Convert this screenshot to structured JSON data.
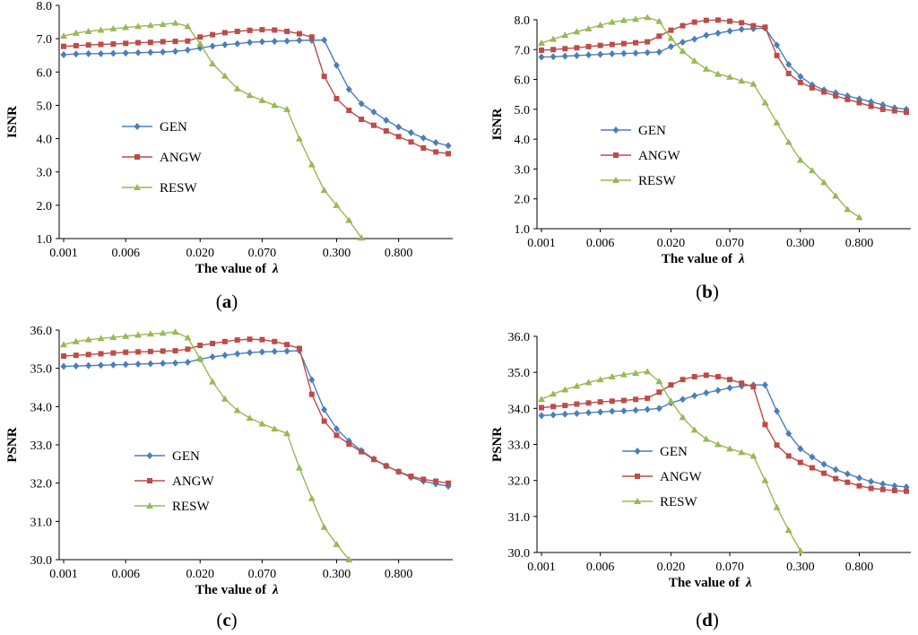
{
  "colors": {
    "GEN": "#4a7ebb",
    "ANGW": "#be4b48",
    "RESW": "#98b954",
    "axis": "#000000"
  },
  "chart_data": [
    {
      "type": "line",
      "panel": "(a)",
      "panel_parts": [
        "(",
        "a",
        ")"
      ],
      "ylabel": "ISNR",
      "xlabel": "The value of",
      "xlabel_symbol": "λ",
      "ylim": [
        1.0,
        8.0
      ],
      "y_ticks": [
        "8.0",
        "7.0",
        "6.0",
        "5.0",
        "4.0",
        "3.0",
        "2.0",
        "1.0"
      ],
      "x_tick_labels": [
        "0.001",
        "0.006",
        "0.020",
        "0.070",
        "0.300",
        "0.800"
      ],
      "x_tick_index": [
        0,
        5,
        11,
        16,
        22,
        27
      ],
      "n_points": 32,
      "series": [
        {
          "name": "GEN",
          "values": [
            6.52,
            6.54,
            6.55,
            6.55,
            6.56,
            6.57,
            6.58,
            6.59,
            6.6,
            6.62,
            6.66,
            6.72,
            6.78,
            6.82,
            6.85,
            6.89,
            6.91,
            6.92,
            6.93,
            6.95,
            6.95,
            6.96,
            6.2,
            5.48,
            5.05,
            4.8,
            4.55,
            4.35,
            4.18,
            4.02,
            3.88,
            3.79
          ]
        },
        {
          "name": "ANGW",
          "values": [
            6.77,
            6.79,
            6.81,
            6.83,
            6.84,
            6.86,
            6.88,
            6.89,
            6.91,
            6.92,
            6.93,
            7.05,
            7.12,
            7.18,
            7.22,
            7.25,
            7.27,
            7.26,
            7.22,
            7.15,
            7.05,
            5.87,
            5.2,
            4.85,
            4.58,
            4.4,
            4.23,
            4.06,
            3.9,
            3.72,
            3.6,
            3.55
          ]
        },
        {
          "name": "RESW",
          "values": [
            7.08,
            7.17,
            7.22,
            7.26,
            7.3,
            7.34,
            7.37,
            7.4,
            7.43,
            7.47,
            7.37,
            6.85,
            6.25,
            5.88,
            5.5,
            5.3,
            5.15,
            5.0,
            4.88,
            4.0,
            3.22,
            2.45,
            2.0,
            1.55,
            1.02
          ]
        }
      ]
    },
    {
      "type": "line",
      "panel": "(b)",
      "panel_parts": [
        "(",
        "b",
        ")"
      ],
      "ylabel": "ISNR",
      "xlabel": "The value of",
      "xlabel_symbol": "λ",
      "ylim": [
        1.0,
        8.0
      ],
      "y_ticks": [
        "8.0",
        "7.0",
        "6.0",
        "5.0",
        "4.0",
        "3.0",
        "2.0",
        "1.0"
      ],
      "x_tick_labels": [
        "0.001",
        "0.006",
        "0.020",
        "0.070",
        "0.300",
        "0.800"
      ],
      "x_tick_index": [
        0,
        5,
        11,
        16,
        22,
        27
      ],
      "n_points": 32,
      "series": [
        {
          "name": "GEN",
          "values": [
            6.75,
            6.76,
            6.78,
            6.8,
            6.82,
            6.84,
            6.86,
            6.87,
            6.88,
            6.9,
            6.92,
            7.1,
            7.25,
            7.35,
            7.48,
            7.55,
            7.62,
            7.68,
            7.7,
            7.72,
            7.15,
            6.5,
            6.1,
            5.82,
            5.65,
            5.55,
            5.45,
            5.35,
            5.25,
            5.15,
            5.05,
            5.0
          ]
        },
        {
          "name": "ANGW",
          "values": [
            6.98,
            7.0,
            7.03,
            7.06,
            7.1,
            7.14,
            7.17,
            7.2,
            7.23,
            7.26,
            7.45,
            7.65,
            7.8,
            7.92,
            7.98,
            7.99,
            7.95,
            7.9,
            7.8,
            7.75,
            6.8,
            6.2,
            5.9,
            5.72,
            5.58,
            5.45,
            5.33,
            5.22,
            5.1,
            5.0,
            4.95,
            4.9
          ]
        },
        {
          "name": "RESW",
          "values": [
            7.22,
            7.35,
            7.48,
            7.6,
            7.7,
            7.82,
            7.92,
            7.98,
            8.02,
            8.08,
            7.95,
            7.38,
            6.95,
            6.62,
            6.35,
            6.18,
            6.08,
            5.95,
            5.85,
            5.22,
            4.55,
            3.9,
            3.3,
            2.95,
            2.55,
            2.1,
            1.65,
            1.38
          ]
        }
      ]
    },
    {
      "type": "line",
      "panel": "(c)",
      "panel_parts": [
        "(",
        "c",
        ")"
      ],
      "ylabel": "PSNR",
      "xlabel": "The value of",
      "xlabel_symbol": "λ",
      "ylim": [
        30.0,
        36.0
      ],
      "y_ticks": [
        "36.0",
        "35.0",
        "34.0",
        "33.0",
        "32.0",
        "31.0",
        "30.0"
      ],
      "x_tick_labels": [
        "0.001",
        "0.006",
        "0.020",
        "0.070",
        "0.300",
        "0.800"
      ],
      "x_tick_index": [
        0,
        5,
        11,
        16,
        22,
        27
      ],
      "n_points": 32,
      "series": [
        {
          "name": "GEN",
          "values": [
            35.05,
            35.06,
            35.07,
            35.08,
            35.09,
            35.1,
            35.11,
            35.12,
            35.13,
            35.14,
            35.16,
            35.24,
            35.3,
            35.34,
            35.38,
            35.41,
            35.43,
            35.44,
            35.45,
            35.46,
            34.7,
            33.92,
            33.42,
            33.1,
            32.85,
            32.63,
            32.45,
            32.3,
            32.15,
            32.05,
            31.98,
            31.92
          ]
        },
        {
          "name": "ANGW",
          "values": [
            35.32,
            35.34,
            35.36,
            35.38,
            35.4,
            35.42,
            35.43,
            35.44,
            35.45,
            35.46,
            35.5,
            35.6,
            35.65,
            35.7,
            35.74,
            35.76,
            35.75,
            35.7,
            35.62,
            35.52,
            34.32,
            33.62,
            33.25,
            33.02,
            32.82,
            32.62,
            32.45,
            32.3,
            32.18,
            32.1,
            32.05,
            32.0
          ]
        },
        {
          "name": "RESW",
          "values": [
            35.62,
            35.7,
            35.75,
            35.78,
            35.81,
            35.84,
            35.87,
            35.9,
            35.92,
            35.95,
            35.8,
            35.25,
            34.65,
            34.2,
            33.9,
            33.7,
            33.55,
            33.42,
            33.3,
            32.4,
            31.6,
            30.85,
            30.4,
            30.0
          ]
        }
      ]
    },
    {
      "type": "line",
      "panel": "(d)",
      "panel_parts": [
        "(",
        "d",
        ")"
      ],
      "ylabel": "PSNR",
      "xlabel": "The value of",
      "xlabel_symbol": "λ",
      "ylim": [
        30.0,
        36.0
      ],
      "y_ticks": [
        "36.0",
        "35.0",
        "34.0",
        "33.0",
        "32.0",
        "31.0",
        "30.0"
      ],
      "x_tick_labels": [
        "0.001",
        "0.006",
        "0.020",
        "0.070",
        "0.300",
        "0.800"
      ],
      "x_tick_index": [
        0,
        5,
        11,
        16,
        22,
        27
      ],
      "n_points": 32,
      "series": [
        {
          "name": "GEN",
          "values": [
            33.8,
            33.82,
            33.84,
            33.86,
            33.88,
            33.9,
            33.92,
            33.93,
            33.95,
            33.97,
            34.0,
            34.15,
            34.25,
            34.35,
            34.43,
            34.5,
            34.57,
            34.62,
            34.65,
            34.65,
            33.92,
            33.3,
            32.88,
            32.65,
            32.45,
            32.3,
            32.18,
            32.07,
            31.97,
            31.9,
            31.85,
            31.82
          ]
        },
        {
          "name": "ANGW",
          "values": [
            34.02,
            34.05,
            34.08,
            34.12,
            34.15,
            34.18,
            34.2,
            34.22,
            34.25,
            34.28,
            34.45,
            34.65,
            34.8,
            34.88,
            34.92,
            34.88,
            34.8,
            34.7,
            34.6,
            33.55,
            32.98,
            32.68,
            32.5,
            32.35,
            32.2,
            32.05,
            31.95,
            31.85,
            31.78,
            31.75,
            31.72,
            31.7
          ]
        },
        {
          "name": "RESW",
          "values": [
            34.25,
            34.4,
            34.52,
            34.62,
            34.72,
            34.8,
            34.88,
            34.94,
            34.98,
            35.02,
            34.75,
            34.2,
            33.75,
            33.4,
            33.15,
            33.0,
            32.88,
            32.78,
            32.68,
            32.0,
            31.25,
            30.62,
            30.05
          ]
        }
      ]
    }
  ]
}
